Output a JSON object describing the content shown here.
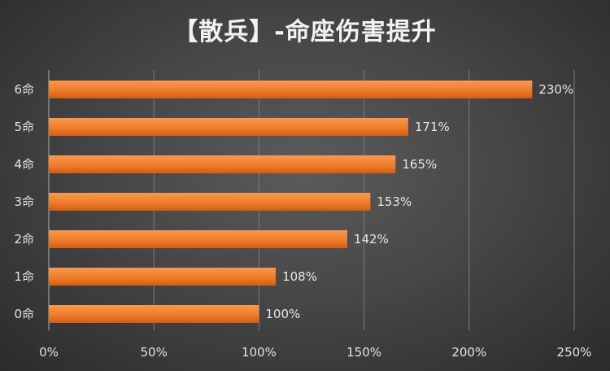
{
  "chart_data": {
    "type": "bar",
    "orientation": "horizontal",
    "title": "【散兵】-命座伤害提升",
    "categories": [
      "6命",
      "5命",
      "4命",
      "3命",
      "2命",
      "1命",
      "0命"
    ],
    "values": [
      230,
      171,
      165,
      153,
      142,
      108,
      100
    ],
    "data_labels": [
      "230%",
      "171%",
      "165%",
      "153%",
      "142%",
      "108%",
      "100%"
    ],
    "xticks": [
      0,
      50,
      100,
      150,
      200,
      250
    ],
    "xtick_labels": [
      "0%",
      "50%",
      "100%",
      "150%",
      "200%",
      "250%"
    ],
    "xlim": [
      0,
      250
    ],
    "grid": true,
    "bar_color": "#f07b2a",
    "bar_color_light": "#f79a4f",
    "bar_color_dark": "#cf5f14",
    "grid_color": "#7a7a7a"
  }
}
